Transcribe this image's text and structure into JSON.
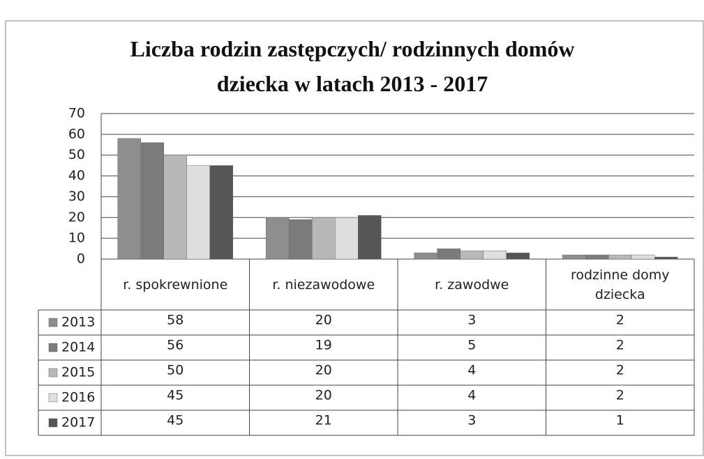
{
  "chart_data": {
    "type": "bar",
    "title": "Liczba rodzin zastępczych/ rodzinnych domów dziecka w latach 2013 - 2017",
    "categories": [
      "r. spokrewnione",
      "r. niezawodowe",
      "r. zawodwe",
      "rodzinne domy dziecka"
    ],
    "series": [
      {
        "name": "2013",
        "color": "#8e8e8e",
        "values": [
          58,
          20,
          3,
          2
        ]
      },
      {
        "name": "2014",
        "color": "#7b7b7b",
        "values": [
          56,
          19,
          5,
          2
        ]
      },
      {
        "name": "2015",
        "color": "#b8b8b8",
        "values": [
          50,
          20,
          4,
          2
        ]
      },
      {
        "name": "2016",
        "color": "#dedede",
        "values": [
          45,
          20,
          4,
          2
        ]
      },
      {
        "name": "2017",
        "color": "#555555",
        "values": [
          45,
          21,
          3,
          1
        ]
      }
    ],
    "ylim": [
      0,
      70
    ],
    "yticks": [
      0,
      10,
      20,
      30,
      40,
      50,
      60,
      70
    ],
    "grid": true,
    "data_table": true
  }
}
